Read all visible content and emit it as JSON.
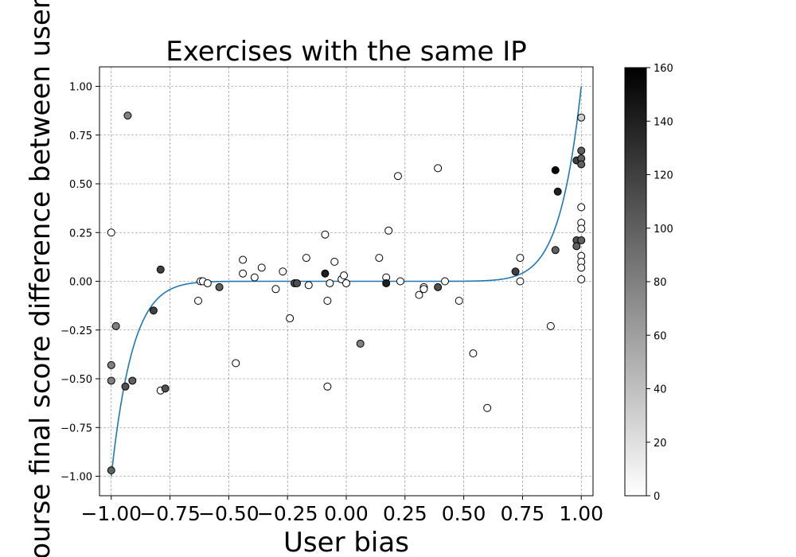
{
  "chart_data": {
    "type": "scatter",
    "title": "Exercises with the same IP",
    "xlabel": "User bias",
    "ylabel": "Course final score difference between users",
    "xlim": [
      -1.05,
      1.05
    ],
    "ylim": [
      -1.1,
      1.1
    ],
    "xticks": [
      -1.0,
      -0.75,
      -0.5,
      -0.25,
      0.0,
      0.25,
      0.5,
      0.75,
      1.0
    ],
    "xtick_labels": [
      "−1.00",
      "−0.75",
      "−0.50",
      "−0.25",
      "0.00",
      "0.25",
      "0.50",
      "0.75",
      "1.00"
    ],
    "yticks": [
      -1.0,
      -0.75,
      -0.5,
      -0.25,
      0.0,
      0.25,
      0.5,
      0.75,
      1.0
    ],
    "ytick_labels": [
      "−1.00",
      "−0.75",
      "−0.50",
      "−0.25",
      "0.00",
      "0.25",
      "0.50",
      "0.75",
      "1.00"
    ],
    "grid": true,
    "colorbar": {
      "range": [
        0,
        160
      ],
      "ticks": [
        0,
        20,
        40,
        60,
        80,
        100,
        120,
        140,
        160
      ],
      "tick_labels": [
        "0",
        "20",
        "40",
        "60",
        "80",
        "100",
        "120",
        "140",
        "160"
      ],
      "colormap": "Greys"
    },
    "points": [
      {
        "x": -1.0,
        "y": -0.97,
        "c": 100
      },
      {
        "x": -1.0,
        "y": -0.51,
        "c": 80
      },
      {
        "x": -1.0,
        "y": -0.43,
        "c": 80
      },
      {
        "x": -1.0,
        "y": 0.25,
        "c": 0
      },
      {
        "x": -0.98,
        "y": -0.23,
        "c": 80
      },
      {
        "x": -0.94,
        "y": -0.54,
        "c": 110
      },
      {
        "x": -0.93,
        "y": 0.85,
        "c": 80
      },
      {
        "x": -0.91,
        "y": -0.51,
        "c": 100
      },
      {
        "x": -0.82,
        "y": -0.15,
        "c": 120
      },
      {
        "x": -0.79,
        "y": -0.56,
        "c": 0
      },
      {
        "x": -0.79,
        "y": 0.06,
        "c": 120
      },
      {
        "x": -0.77,
        "y": -0.55,
        "c": 110
      },
      {
        "x": -0.63,
        "y": -0.1,
        "c": 0
      },
      {
        "x": -0.62,
        "y": 0.0,
        "c": 0
      },
      {
        "x": -0.61,
        "y": 0.0,
        "c": 0
      },
      {
        "x": -0.59,
        "y": -0.01,
        "c": 0
      },
      {
        "x": -0.54,
        "y": -0.03,
        "c": 100
      },
      {
        "x": -0.47,
        "y": -0.42,
        "c": 0
      },
      {
        "x": -0.44,
        "y": 0.11,
        "c": 0
      },
      {
        "x": -0.44,
        "y": 0.04,
        "c": 0
      },
      {
        "x": -0.39,
        "y": 0.02,
        "c": 0
      },
      {
        "x": -0.36,
        "y": 0.07,
        "c": 0
      },
      {
        "x": -0.3,
        "y": -0.04,
        "c": 0
      },
      {
        "x": -0.27,
        "y": 0.05,
        "c": 0
      },
      {
        "x": -0.24,
        "y": -0.19,
        "c": 0
      },
      {
        "x": -0.22,
        "y": -0.01,
        "c": 110
      },
      {
        "x": -0.21,
        "y": -0.01,
        "c": 110
      },
      {
        "x": -0.17,
        "y": 0.12,
        "c": 0
      },
      {
        "x": -0.16,
        "y": -0.02,
        "c": 0
      },
      {
        "x": -0.09,
        "y": 0.04,
        "c": 140
      },
      {
        "x": -0.09,
        "y": 0.24,
        "c": 0
      },
      {
        "x": -0.08,
        "y": -0.1,
        "c": 0
      },
      {
        "x": -0.08,
        "y": -0.54,
        "c": 0
      },
      {
        "x": -0.07,
        "y": -0.01,
        "c": 0
      },
      {
        "x": -0.05,
        "y": 0.1,
        "c": 0
      },
      {
        "x": -0.02,
        "y": 0.01,
        "c": 0
      },
      {
        "x": -0.01,
        "y": 0.03,
        "c": 0
      },
      {
        "x": 0.0,
        "y": -0.01,
        "c": 0
      },
      {
        "x": 0.06,
        "y": -0.32,
        "c": 80
      },
      {
        "x": 0.14,
        "y": 0.12,
        "c": 0
      },
      {
        "x": 0.17,
        "y": 0.02,
        "c": 0
      },
      {
        "x": 0.17,
        "y": -0.01,
        "c": 140
      },
      {
        "x": 0.18,
        "y": 0.26,
        "c": 0
      },
      {
        "x": 0.22,
        "y": 0.54,
        "c": 0
      },
      {
        "x": 0.23,
        "y": 0.0,
        "c": 0
      },
      {
        "x": 0.31,
        "y": -0.07,
        "c": 0
      },
      {
        "x": 0.33,
        "y": -0.03,
        "c": 0
      },
      {
        "x": 0.33,
        "y": -0.04,
        "c": 0
      },
      {
        "x": 0.39,
        "y": 0.58,
        "c": 0
      },
      {
        "x": 0.39,
        "y": -0.03,
        "c": 110
      },
      {
        "x": 0.42,
        "y": 0.0,
        "c": 0
      },
      {
        "x": 0.48,
        "y": -0.1,
        "c": 0
      },
      {
        "x": 0.54,
        "y": -0.37,
        "c": 0
      },
      {
        "x": 0.6,
        "y": -0.65,
        "c": 0
      },
      {
        "x": 0.72,
        "y": 0.05,
        "c": 120
      },
      {
        "x": 0.74,
        "y": 0.12,
        "c": 0
      },
      {
        "x": 0.74,
        "y": 0.0,
        "c": 0
      },
      {
        "x": 0.87,
        "y": -0.23,
        "c": 0
      },
      {
        "x": 0.89,
        "y": 0.57,
        "c": 160
      },
      {
        "x": 0.89,
        "y": 0.16,
        "c": 100
      },
      {
        "x": 0.9,
        "y": 0.46,
        "c": 140
      },
      {
        "x": 0.98,
        "y": 0.62,
        "c": 120
      },
      {
        "x": 0.98,
        "y": 0.21,
        "c": 110
      },
      {
        "x": 0.98,
        "y": 0.18,
        "c": 100
      },
      {
        "x": 1.0,
        "y": 0.84,
        "c": 30
      },
      {
        "x": 1.0,
        "y": 0.67,
        "c": 100
      },
      {
        "x": 1.0,
        "y": 0.63,
        "c": 100
      },
      {
        "x": 1.0,
        "y": 0.6,
        "c": 100
      },
      {
        "x": 1.0,
        "y": 0.38,
        "c": 0
      },
      {
        "x": 1.0,
        "y": 0.3,
        "c": 0
      },
      {
        "x": 1.0,
        "y": 0.27,
        "c": 0
      },
      {
        "x": 1.0,
        "y": 0.21,
        "c": 100
      },
      {
        "x": 1.0,
        "y": 0.13,
        "c": 0
      },
      {
        "x": 1.0,
        "y": 0.1,
        "c": 0
      },
      {
        "x": 1.0,
        "y": 0.07,
        "c": 0
      },
      {
        "x": 1.0,
        "y": 0.01,
        "c": 0
      }
    ],
    "fit_curve": {
      "type": "polynomial",
      "formula": "y = x^11",
      "x_range": [
        -1.0,
        1.0
      ],
      "color": "#1f77b4"
    },
    "colors": {
      "fit_line": "#1f77b4",
      "grid": "#808080",
      "marker_edge": "#000000"
    }
  }
}
